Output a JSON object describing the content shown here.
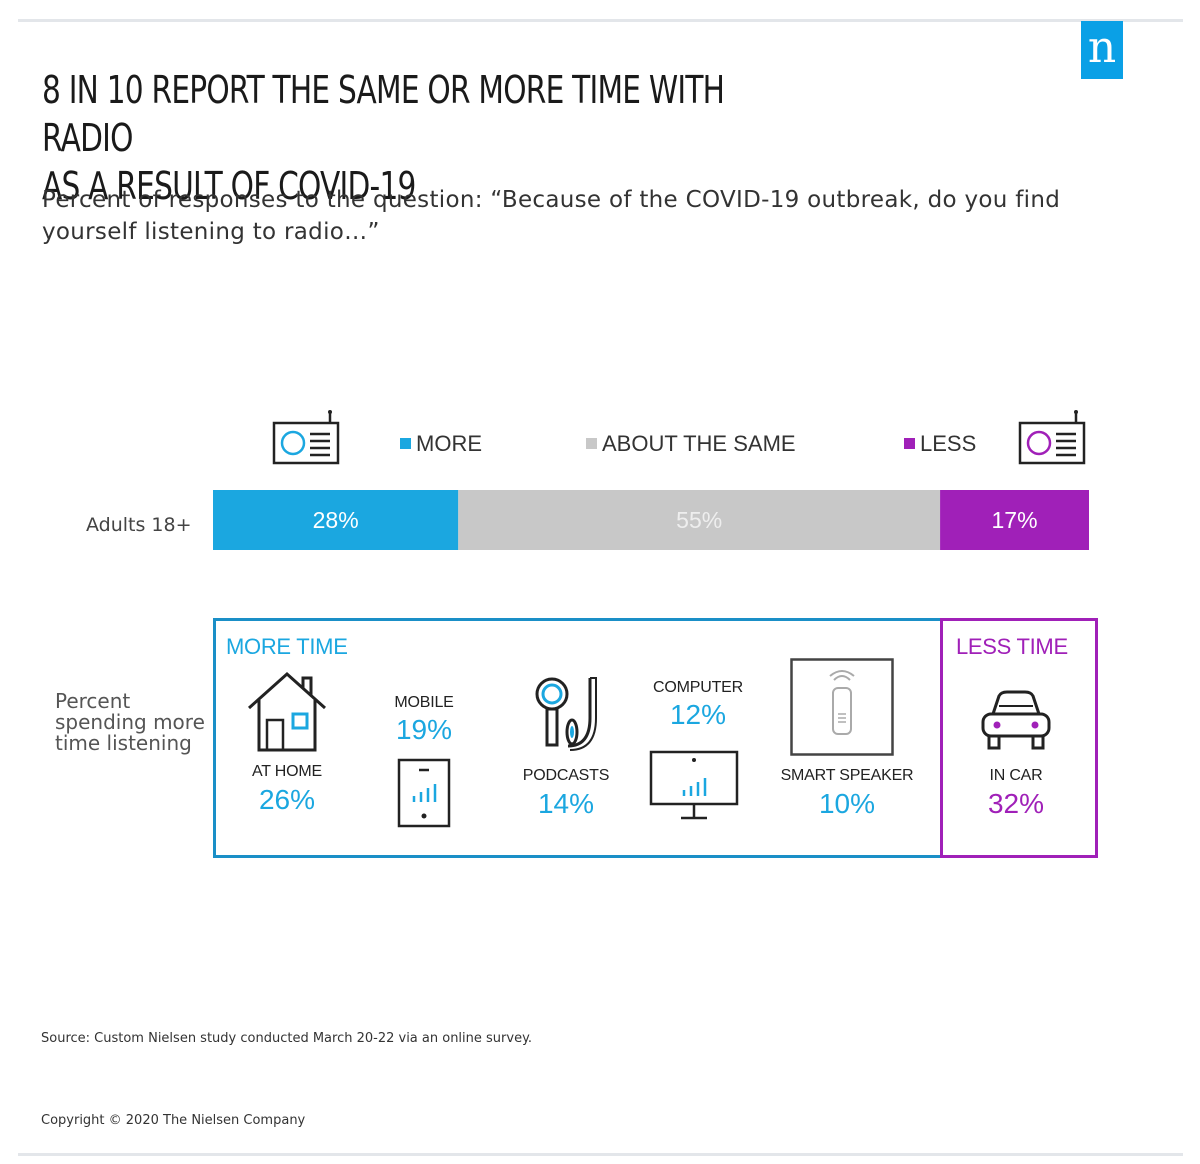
{
  "logo": {
    "letter": "n"
  },
  "header": {
    "title_line1": "8 IN 10 REPORT THE SAME OR MORE TIME WITH RADIO",
    "title_line2": "AS A RESULT OF COVID-19",
    "subtitle": "Percent of responses to the question: “Because of the COVID-19 outbreak, do you find yourself listening to radio…”"
  },
  "colors": {
    "more": "#1ba7e0",
    "same": "#c8c8c8",
    "less": "#a020b8"
  },
  "chart_data": [
    {
      "type": "bar",
      "orientation": "horizontal-stacked",
      "categories": [
        "Adults 18+"
      ],
      "series": [
        {
          "name": "MORE",
          "values": [
            28
          ],
          "label": "28%"
        },
        {
          "name": "ABOUT THE SAME",
          "values": [
            55
          ],
          "label": "55%"
        },
        {
          "name": "LESS",
          "values": [
            17
          ],
          "label": "17%"
        }
      ],
      "xlim": [
        0,
        100
      ],
      "legend": "top"
    },
    {
      "type": "table",
      "row_label": "Percent spending more time listening",
      "groups": [
        {
          "name": "MORE TIME",
          "items": [
            {
              "category": "AT HOME",
              "value": 26,
              "label": "26%",
              "icon": "house-icon"
            },
            {
              "category": "MOBILE",
              "value": 19,
              "label": "19%",
              "icon": "mobile-phone-icon"
            },
            {
              "category": "PODCASTS",
              "value": 14,
              "label": "14%",
              "icon": "podcast-mic-headphone-icon"
            },
            {
              "category": "COMPUTER",
              "value": 12,
              "label": "12%",
              "icon": "computer-monitor-icon"
            },
            {
              "category": "SMART SPEAKER",
              "value": 10,
              "label": "10%",
              "icon": "smart-speaker-icon"
            }
          ]
        },
        {
          "name": "LESS TIME",
          "items": [
            {
              "category": "IN CAR",
              "value": 32,
              "label": "32%",
              "icon": "car-icon"
            }
          ]
        }
      ]
    }
  ],
  "footer": {
    "source": "Source: Custom Nielsen study conducted March 20-22 via an online survey.",
    "copyright": "Copyright © 2020 The Nielsen Company"
  }
}
